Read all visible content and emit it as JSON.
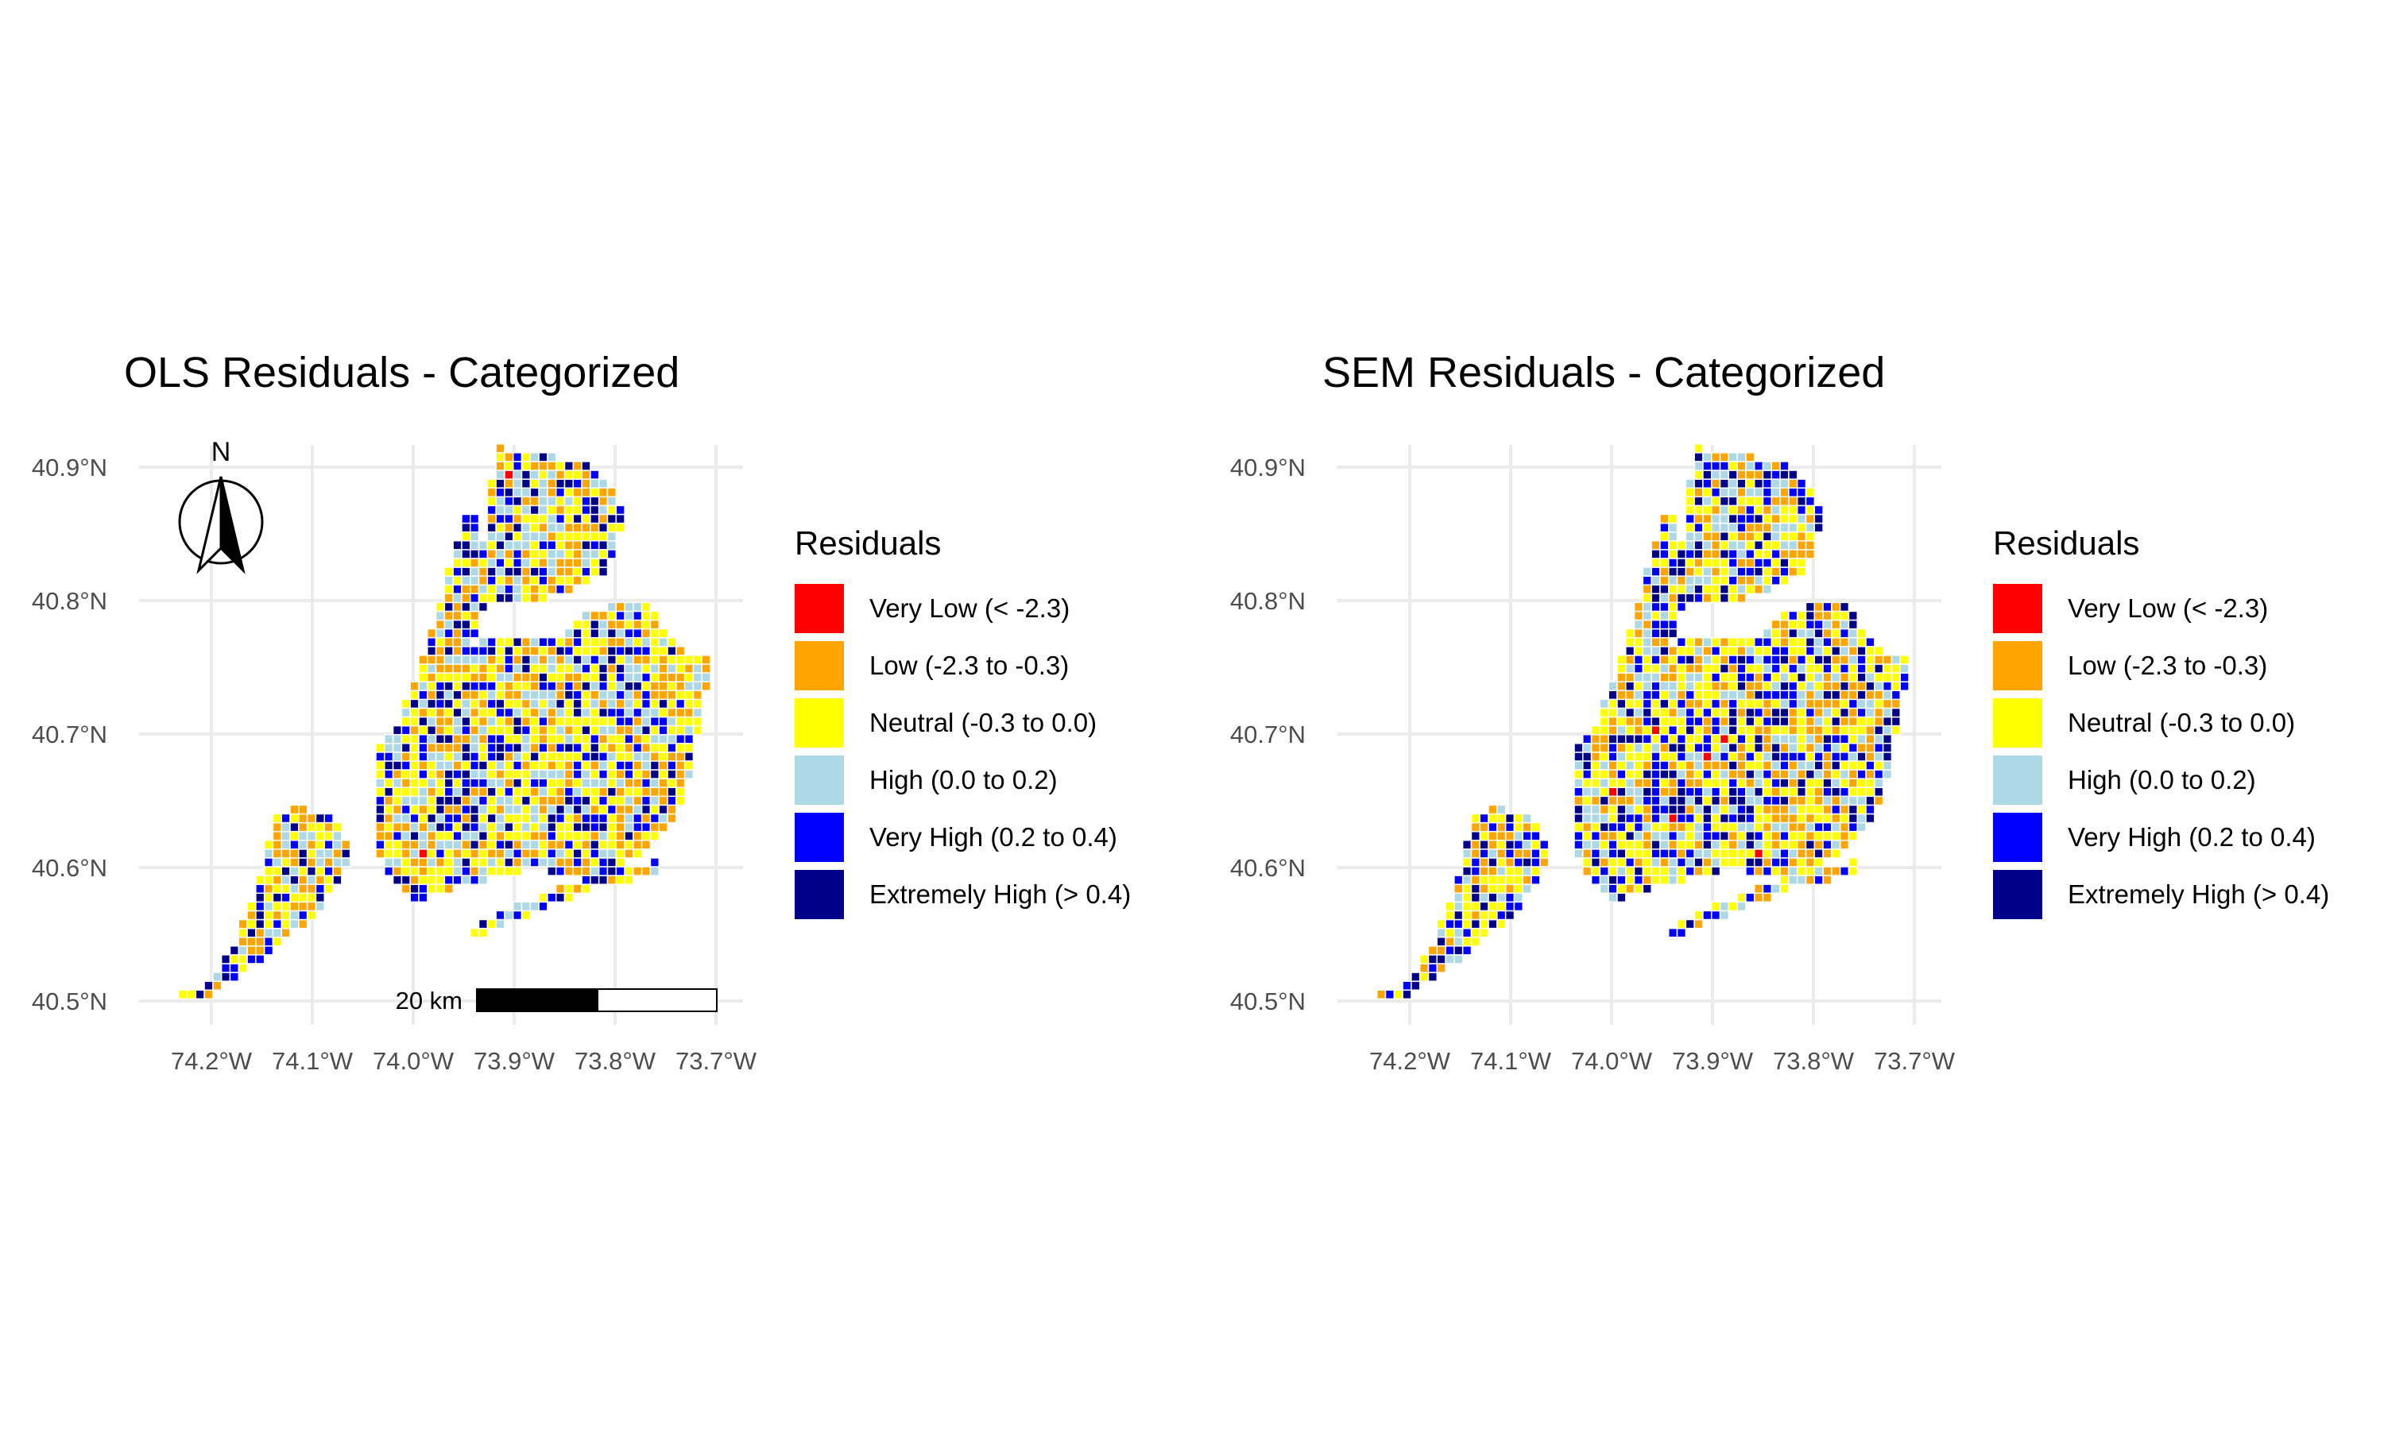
{
  "maps": [
    {
      "title": "OLS Residuals - Categorized",
      "variant": "ols",
      "show_north_arrow": true,
      "north_label": "N",
      "show_scale_bar": true,
      "scale_bar_label": "20 km"
    },
    {
      "title": "SEM Residuals - Categorized",
      "variant": "sem",
      "show_north_arrow": false,
      "show_scale_bar": false
    }
  ],
  "axes": {
    "lat_ticks": [
      "40.5°N",
      "40.6°N",
      "40.7°N",
      "40.8°N",
      "40.9°N"
    ],
    "lon_ticks": [
      "74.2°W",
      "74.1°W",
      "74.0°W",
      "73.9°W",
      "73.8°W",
      "73.7°W"
    ],
    "lat_values": [
      40.5,
      40.6,
      40.7,
      40.8,
      40.9
    ],
    "lon_values": [
      -74.2,
      -74.1,
      -74.0,
      -73.9,
      -73.8,
      -73.7
    ],
    "grid": true,
    "grid_color": "#ebebeb"
  },
  "legend": {
    "title": "Residuals",
    "placement": "right",
    "items": [
      {
        "label": "Very Low (< -2.3)",
        "color": "#ff0000"
      },
      {
        "label": "Low (-2.3 to -0.3)",
        "color": "#ffa500"
      },
      {
        "label": "Neutral (-0.3 to 0.0)",
        "color": "#ffff00"
      },
      {
        "label": "High (0.0 to 0.2)",
        "color": "#add8e6"
      },
      {
        "label": "Very High (0.2 to 0.4)",
        "color": "#0000ff"
      },
      {
        "label": "Extremely High (> 0.4)",
        "color": "#00008b"
      }
    ]
  }
}
